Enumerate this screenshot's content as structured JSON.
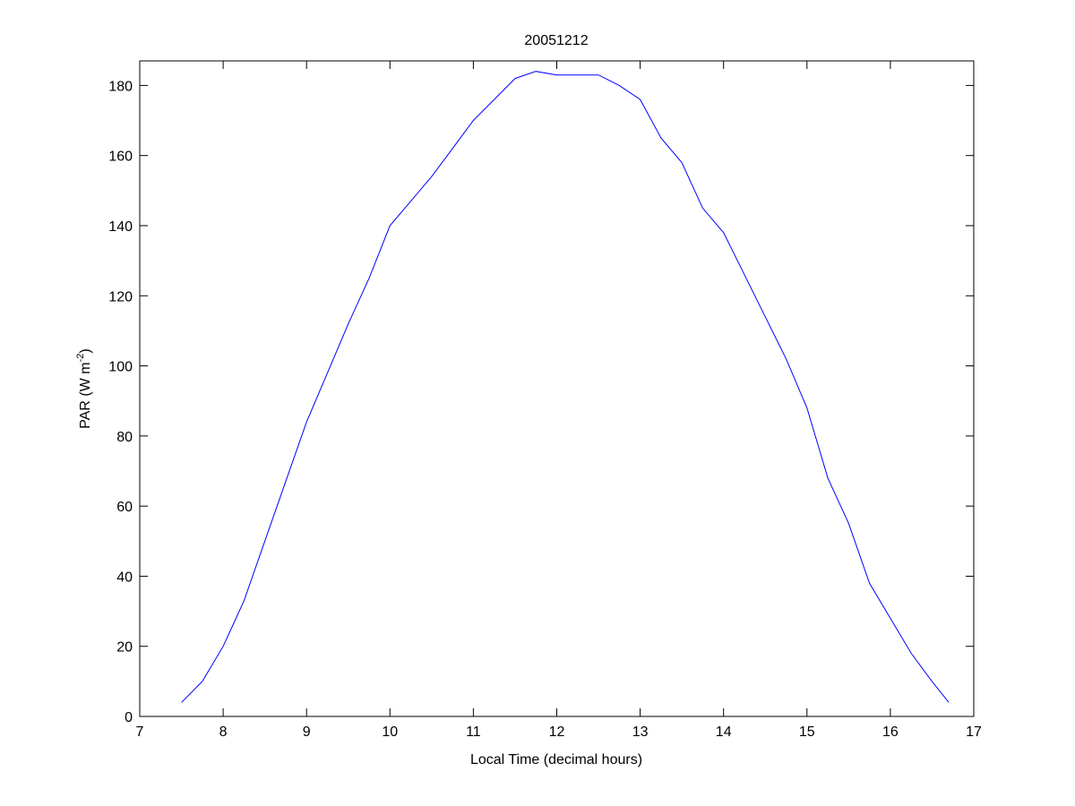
{
  "chart_data": {
    "type": "line",
    "title": "20051212",
    "xlabel": "Local Time (decimal hours)",
    "ylabel": "PAR (W m^-2)",
    "ylabel_parts": {
      "base": "PAR (W m",
      "sup": "-2",
      "close": ")"
    },
    "xlim": [
      7,
      17
    ],
    "ylim": [
      0,
      187
    ],
    "xticks": [
      7,
      8,
      9,
      10,
      11,
      12,
      13,
      14,
      15,
      16,
      17
    ],
    "yticks": [
      0,
      20,
      40,
      60,
      80,
      100,
      120,
      140,
      160,
      180
    ],
    "grid": false,
    "line_color": "#0000ff",
    "series": [
      {
        "x": [
          7.5,
          7.75,
          8,
          8.25,
          8.5,
          8.75,
          9,
          9.25,
          9.5,
          9.75,
          10,
          10.25,
          10.5,
          10.75,
          11,
          11.25,
          11.5,
          11.75,
          12,
          12.25,
          12.5,
          12.75,
          13,
          13.25,
          13.5,
          13.75,
          14,
          14.25,
          14.5,
          14.75,
          15,
          15.25,
          15.5,
          15.75,
          16,
          16.25,
          16.5,
          16.7
        ],
        "values": [
          4,
          10,
          20,
          33,
          50,
          67,
          84,
          98,
          112,
          125,
          140,
          147,
          154,
          162,
          170,
          176,
          182,
          184,
          183,
          183,
          183,
          180,
          176,
          165,
          158,
          145,
          138,
          126,
          114,
          102,
          88,
          68,
          55,
          38,
          28,
          18,
          10,
          4
        ]
      }
    ]
  }
}
